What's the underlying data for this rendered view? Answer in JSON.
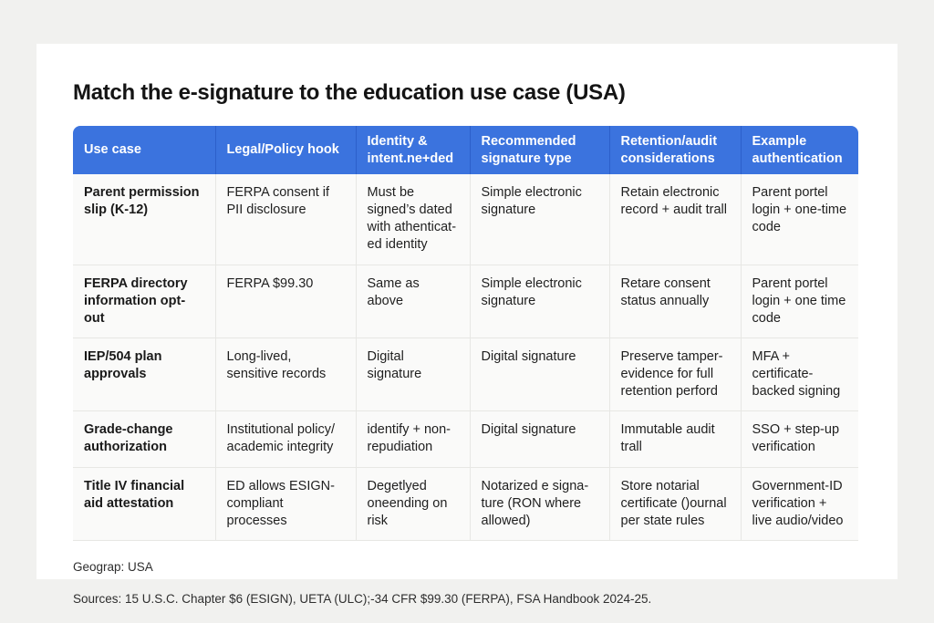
{
  "page": {
    "title": "Match the e-signature to the education use case (USA)"
  },
  "table": {
    "columns": [
      "Use case",
      "Legal/Policy hook",
      "Identity & intent.ne+ded",
      "Recommended signature type",
      "Retention/audit considerations",
      "Example authentication"
    ],
    "rows": [
      [
        "Parent permission slip (K-12)",
        "FERPA consent if PII disclosure",
        "Must be signed’s dated with athenticat-ed identity",
        "Simple electronic signature",
        "Retain electronic record + audit trall",
        "Parent portel login + one-time code"
      ],
      [
        "FERPA directory information opt-out",
        "FERPA $99.30",
        "Same as above",
        "Simple electronic signature",
        "Retare consent status annually",
        "Parent portel login + one time code"
      ],
      [
        "IEP/504 plan approvals",
        "Long-lived, sensitive records",
        "Digital signature",
        "Digital signature",
        "Preserve tamper-evidence for full retention perford",
        "MFA + certificate-backed signing"
      ],
      [
        "Grade-change authorization",
        "Institutional policy/ academic integrity",
        "identify + non-repudiation",
        "Digital signature",
        "Immutable audit trall",
        "SSO + step-up verification"
      ],
      [
        "Title IV financial aid attestation",
        "ED allows ESIGN-compliant processes",
        "Degetlyed oneending on risk",
        "Notarized e signa-ture (RON where allowed)",
        "Store notarial certificate ()ournal per state rules",
        "Government-ID verification + live audio/video"
      ]
    ]
  },
  "footer": {
    "geography": "Geograp: USA",
    "sources": "Sources: 15 U.S.C. Chapter $6 (ESIGN), UETA (ULC);-34 CFR $99.30 (FERPA), FSA Handbook 2024-25."
  },
  "colors": {
    "header_bg": "#3b73de",
    "header_divider": "#2c5fca",
    "cell_bg": "#fafaf9",
    "cell_border": "#e7e7e4",
    "page_bg": "#f1f1ef",
    "card_bg": "#ffffff"
  }
}
